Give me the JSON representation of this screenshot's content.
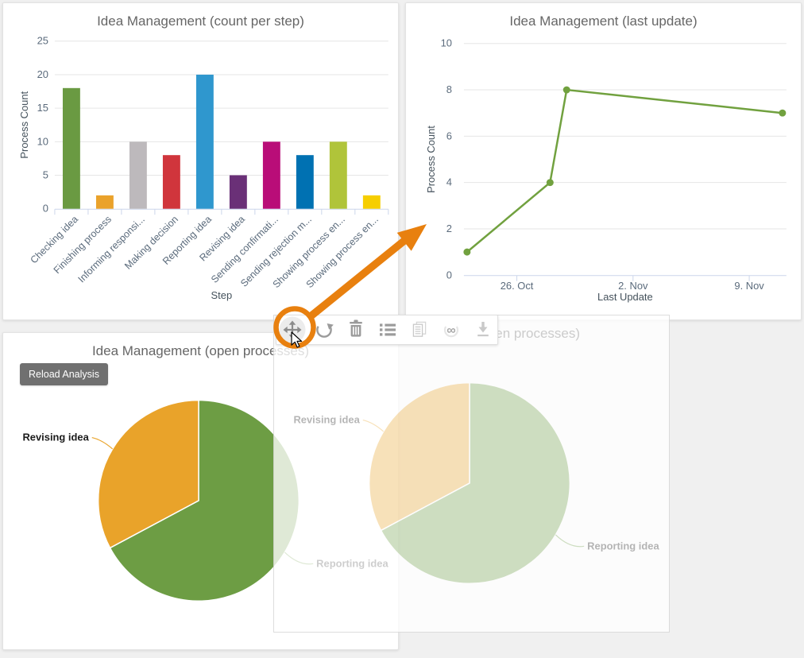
{
  "page": {
    "background": "#f0f0f0"
  },
  "pie_panel": {
    "reload_button_label": "Reload Analysis"
  },
  "toolbar": {
    "buttons": [
      {
        "name": "move",
        "icon": "move-icon",
        "enabled": true,
        "highlighted": true
      },
      {
        "name": "reload",
        "icon": "reload-icon",
        "enabled": true
      },
      {
        "name": "delete",
        "icon": "trash-icon",
        "enabled": true
      },
      {
        "name": "list",
        "icon": "list-icon",
        "enabled": true
      },
      {
        "name": "report",
        "icon": "document-icon",
        "enabled": false
      },
      {
        "name": "link",
        "icon": "infinity-link-icon",
        "enabled": false
      },
      {
        "name": "download",
        "icon": "download-icon",
        "enabled": false
      }
    ]
  },
  "annotations": {
    "highlight_color": "#e8800f",
    "highlighted_button": "move",
    "cursor": "arrow-pointer"
  },
  "chart_data": [
    {
      "type": "bar",
      "title": "Idea Management (count per step)",
      "xlabel": "Step",
      "ylabel": "Process Count",
      "categories": [
        "Checking idea",
        "Finishing process",
        "Informing responsi...",
        "Making decision",
        "Reporting idea",
        "Revising idea",
        "Sending confirmati...",
        "Sending rejection m...",
        "Showing process en...",
        "Showing process en..."
      ],
      "values": [
        18,
        2,
        10,
        8,
        20,
        5,
        10,
        8,
        10,
        2
      ],
      "colors": [
        "#6a9a42",
        "#eaa22b",
        "#bdb9bc",
        "#d0353c",
        "#2f97ce",
        "#6a3077",
        "#b90d78",
        "#0071b2",
        "#b0c43a",
        "#f6ce00"
      ],
      "ylim": [
        0,
        25
      ],
      "yticks": [
        0,
        5,
        10,
        15,
        20,
        25
      ],
      "grid": true,
      "legend": false
    },
    {
      "type": "line",
      "title": "Idea Management (last update)",
      "xlabel": "Last Update",
      "ylabel": "Process Count",
      "x": [
        "23. Oct",
        "28. Oct",
        "29. Oct",
        "11. Nov"
      ],
      "values": [
        1,
        4,
        8,
        7
      ],
      "xticks": [
        "26. Oct",
        "2. Nov",
        "9. Nov"
      ],
      "ylim": [
        0,
        10
      ],
      "yticks": [
        0,
        2,
        4,
        6,
        8,
        10
      ],
      "color": "#71a13f",
      "grid": true,
      "legend": false
    },
    {
      "type": "pie",
      "title": "Idea Management (open processes)",
      "slices": [
        {
          "label": "Reporting idea",
          "fraction": 0.672,
          "color": "#6d9d44"
        },
        {
          "label": "Revising idea",
          "fraction": 0.328,
          "color": "#e9a32a"
        }
      ],
      "start_angle_deg": 0,
      "direction": "clockwise",
      "legend": false
    }
  ]
}
